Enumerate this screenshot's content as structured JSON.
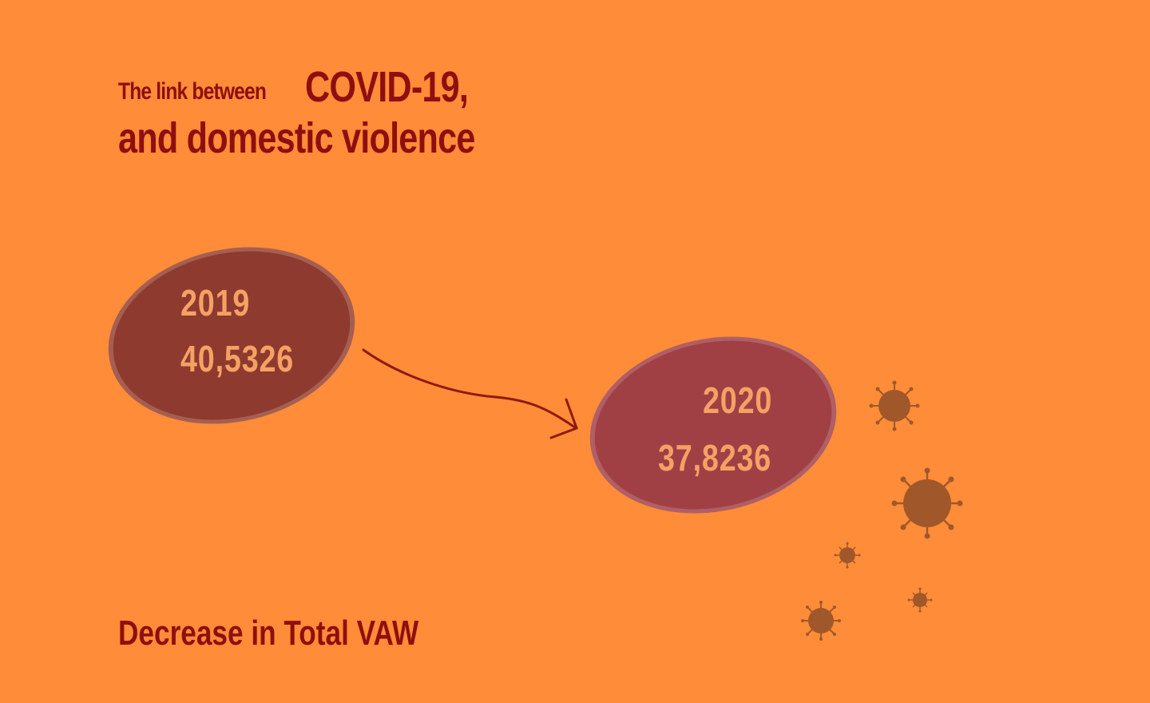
{
  "title": {
    "prefix": "The link between",
    "highlight": "COVID-19,",
    "line2": "and domestic violence"
  },
  "bubbles": [
    {
      "year": "2019",
      "value": "40,5326",
      "color": "#8E3A2E"
    },
    {
      "year": "2020",
      "value": "37,8236",
      "color": "#A04045"
    }
  ],
  "footer": "Decrease in Total VAW",
  "colors": {
    "background": "#FF8C38",
    "title": "#8E0F0F",
    "bubble_text": "#F5A165",
    "arrow": "#8E1A10",
    "virus": "#A0582A"
  },
  "icons": [
    "arrow-icon",
    "virus-icon"
  ]
}
